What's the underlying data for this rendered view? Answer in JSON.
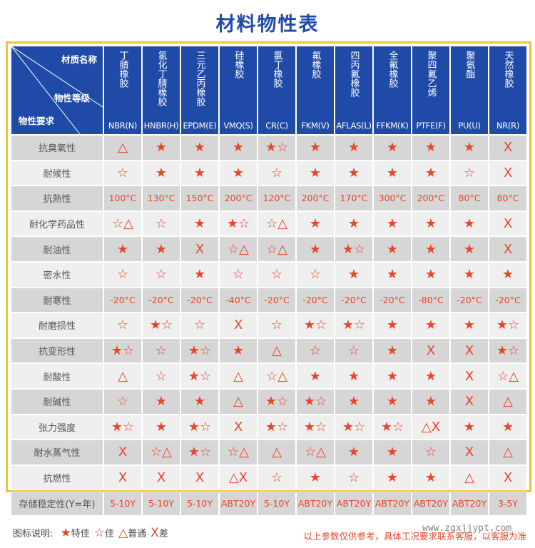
{
  "title": "材料物性表",
  "corner": {
    "material_name": "材质名称",
    "grade": "物性等级",
    "requirement": "物性要求"
  },
  "columns": [
    {
      "name": "丁腈橡胶",
      "code": "NBR(N)"
    },
    {
      "name": "氢化丁腈橡胶",
      "code": "HNBR(H)"
    },
    {
      "name": "三元乙丙橡胶",
      "code": "EPDM(E)"
    },
    {
      "name": "硅橡胶",
      "code": "VMQ(S)"
    },
    {
      "name": "氯丁橡胶",
      "code": "CR(C)"
    },
    {
      "name": "氟橡胶",
      "code": "FKM(V)"
    },
    {
      "name": "四丙氟橡胶",
      "code": "AFLAS(L)"
    },
    {
      "name": "全氟橡胶",
      "code": "FFKM(K)"
    },
    {
      "name": "聚四氟乙烯",
      "code": "PTFE(F)"
    },
    {
      "name": "聚氨酯",
      "code": "PU(U)"
    },
    {
      "name": "天然橡胶",
      "code": "NR(R)"
    }
  ],
  "rows": [
    {
      "label": "抗臭氧性",
      "values": [
        "△",
        "★",
        "★",
        "★",
        "★☆",
        "★",
        "★",
        "★",
        "★",
        "★",
        "X"
      ]
    },
    {
      "label": "耐候性",
      "values": [
        "☆",
        "★",
        "★",
        "★",
        "☆",
        "★",
        "★",
        "★",
        "★",
        "☆",
        "X"
      ]
    },
    {
      "label": "抗熱性",
      "values": [
        "100°C",
        "130°C",
        "150°C",
        "200°C",
        "120°C",
        "200°C",
        "170°C",
        "300°C",
        "200°C",
        "80°C",
        "80°C"
      ]
    },
    {
      "label": "耐化学药品性",
      "values": [
        "☆△",
        "☆",
        "★",
        "★☆",
        "☆△",
        "★",
        "★",
        "★",
        "★",
        "★",
        "X"
      ]
    },
    {
      "label": "耐油性",
      "values": [
        "★",
        "★",
        "X",
        "☆△",
        "☆△",
        "★",
        "★☆",
        "★",
        "★",
        "★",
        "X"
      ]
    },
    {
      "label": "密水性",
      "values": [
        "☆",
        "☆",
        "★",
        "☆",
        "☆",
        "☆",
        "★",
        "★",
        "★",
        "★",
        "★"
      ]
    },
    {
      "label": "耐寒性",
      "values": [
        "-20°C",
        "-20°C",
        "-20°C",
        "-40°C",
        "-20°C",
        "-20°C",
        "-20°C",
        "-20°C",
        "-80°C",
        "-20°C",
        "-20°C"
      ]
    },
    {
      "label": "耐磨损性",
      "values": [
        "☆",
        "★☆",
        "☆",
        "X",
        "☆",
        "★☆",
        "★☆",
        "★",
        "★",
        "★",
        "★☆"
      ]
    },
    {
      "label": "抗变形性",
      "values": [
        "★☆",
        "☆",
        "★☆",
        "★",
        "△",
        "☆",
        "☆",
        "★",
        "X",
        "X",
        "★☆"
      ]
    },
    {
      "label": "耐酸性",
      "values": [
        "△",
        "☆",
        "★☆",
        "△",
        "☆△",
        "★",
        "★",
        "★",
        "★",
        "X",
        "☆△"
      ]
    },
    {
      "label": "耐碱性",
      "values": [
        "☆",
        "★",
        "★",
        "△",
        "★☆",
        "★☆",
        "★",
        "★",
        "★",
        "X",
        "△"
      ]
    },
    {
      "label": "张力强度",
      "values": [
        "★☆",
        "★",
        "★☆",
        "X",
        "★☆",
        "★☆",
        "★☆",
        "★☆",
        "△X",
        "★",
        "★"
      ]
    },
    {
      "label": "耐水蒸气性",
      "values": [
        "X",
        "☆△",
        "★☆",
        "☆△",
        "△",
        "☆△",
        "★",
        "★",
        "☆",
        "X",
        "△"
      ]
    },
    {
      "label": "抗燃性",
      "values": [
        "X",
        "X",
        "X",
        "△X",
        "☆",
        "★",
        "☆",
        "★",
        "★",
        "△",
        "X"
      ]
    },
    {
      "label": "存储稳定性(Y=年)",
      "values": [
        "5-10Y",
        "5-10Y",
        "5-10Y",
        "ABT20Y",
        "5-10Y",
        "ABT20Y",
        "ABT20Y",
        "ABT20Y",
        "ABT20Y",
        "ABT20Y",
        "3-5Y"
      ]
    }
  ],
  "legend": {
    "label": "图标说明:",
    "items": [
      {
        "symbol": "★",
        "text": "特佳"
      },
      {
        "symbol": "☆",
        "text": "佳"
      },
      {
        "symbol": "△",
        "text": "普通"
      },
      {
        "symbol": "X",
        "text": "差"
      }
    ]
  },
  "note": "以上参数仅供参考，具体工况要求联系客服，以客服为准",
  "watermark": "www.zgxjjypt.com",
  "colors": {
    "header": "#1f4aa8",
    "accent": "#e8462a",
    "frame": "#f2c23c"
  }
}
